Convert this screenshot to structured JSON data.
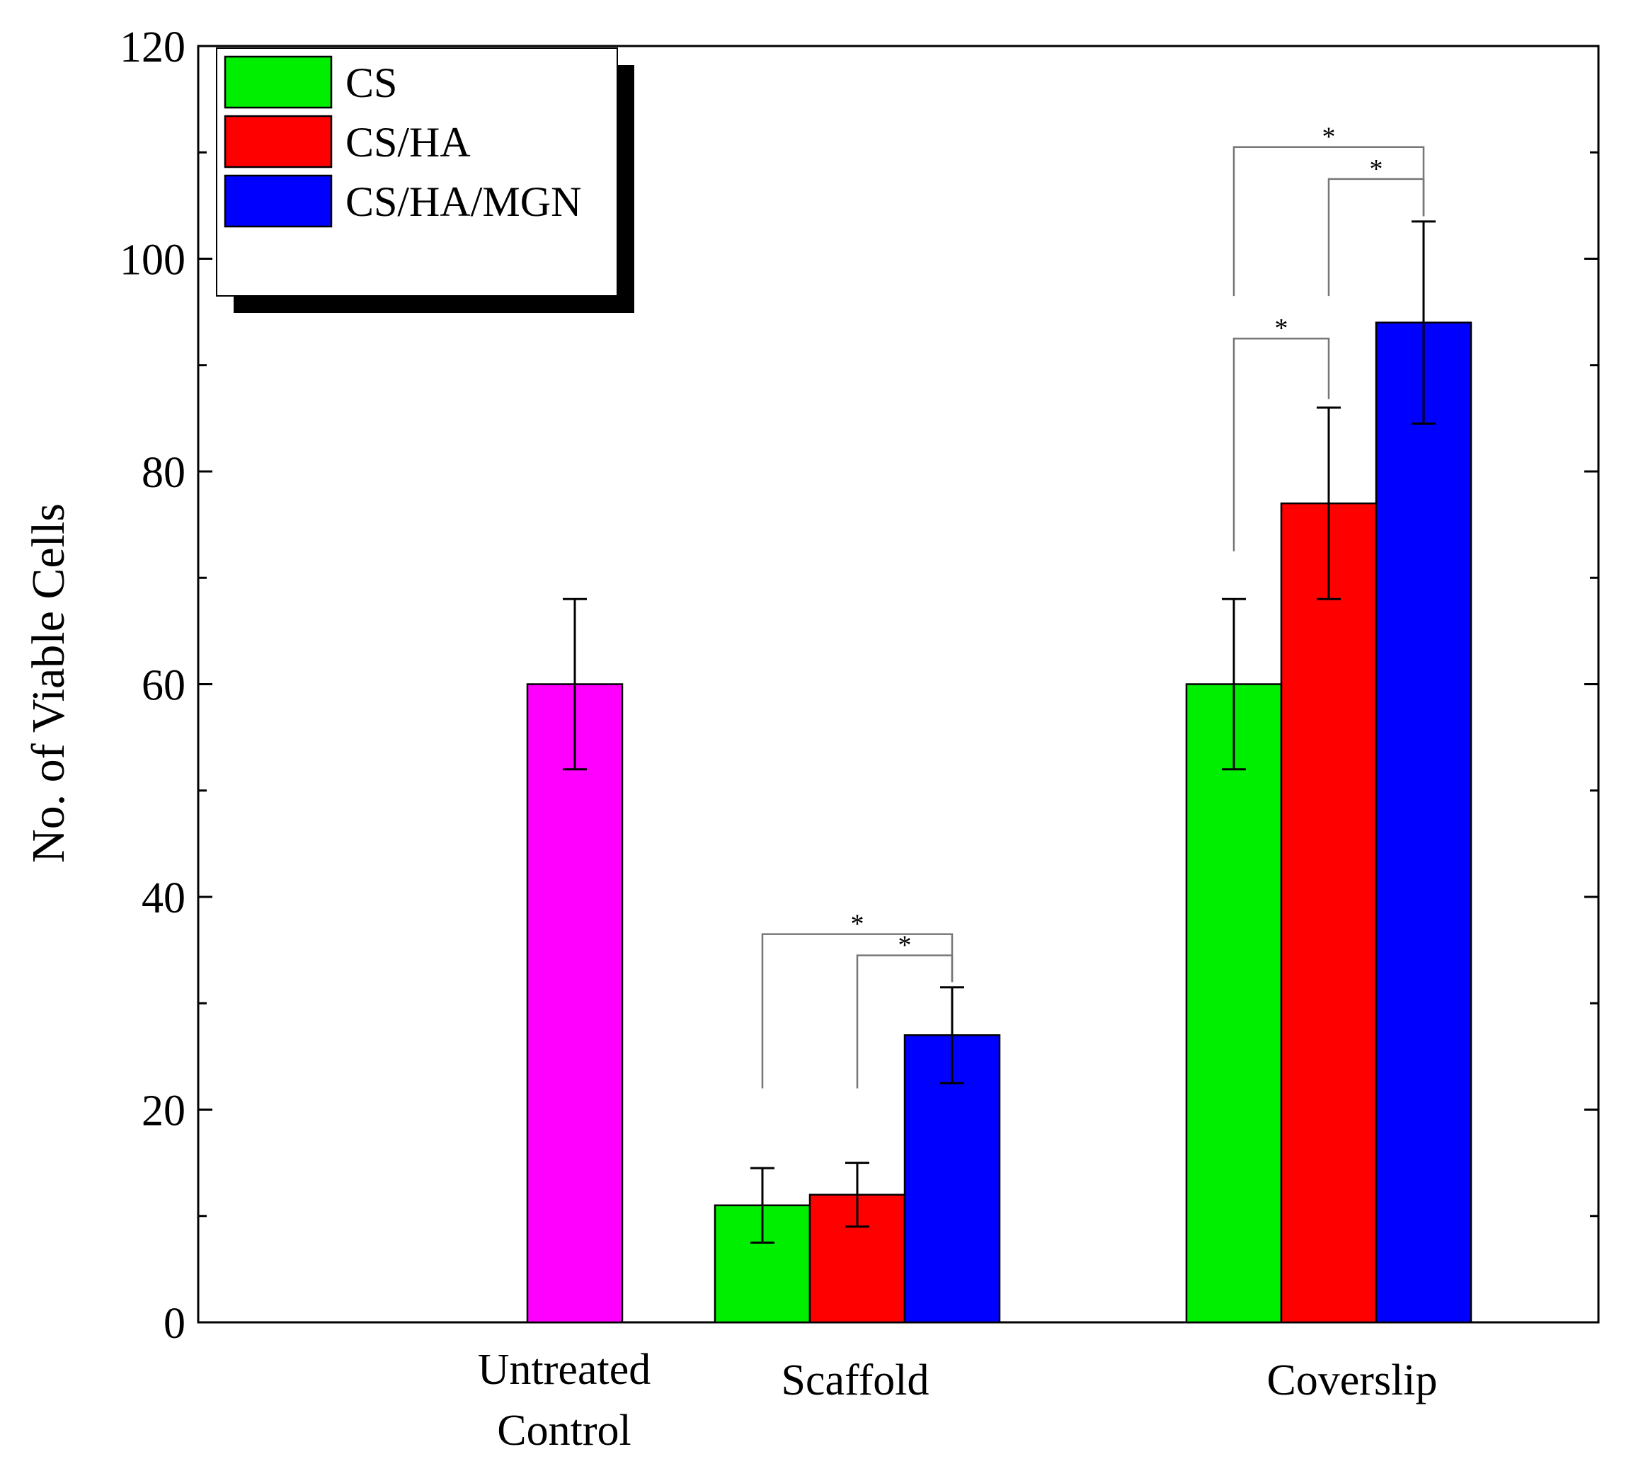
{
  "chart_data": {
    "type": "bar",
    "title": "",
    "xlabel": "",
    "ylabel": "No. of Viable Cells",
    "ylim": [
      0,
      120
    ],
    "yticks": [
      0,
      20,
      40,
      60,
      80,
      100,
      120
    ],
    "legend_position": "top-left",
    "legend": [
      {
        "name": "CS",
        "color": "#00ee00"
      },
      {
        "name": "CS/HA",
        "color": "#ff0000"
      },
      {
        "name": "CS/HA/MGN",
        "color": "#0000ff"
      }
    ],
    "groups": [
      {
        "label_lines": [
          "Untreated",
          "Control"
        ],
        "bars": [
          {
            "name": "Untreated Control",
            "value": 60,
            "error": 8,
            "color": "#ff00ff"
          }
        ]
      },
      {
        "label_lines": [
          "Scaffold"
        ],
        "bars": [
          {
            "name": "CS",
            "value": 11,
            "error": 3.5,
            "color": "#00ee00"
          },
          {
            "name": "CS/HA",
            "value": 12,
            "error": 3,
            "color": "#ff0000"
          },
          {
            "name": "CS/HA/MGN",
            "value": 27,
            "error": 4.5,
            "color": "#0000ff"
          }
        ]
      },
      {
        "label_lines": [
          "Coverslip"
        ],
        "bars": [
          {
            "name": "CS",
            "value": 60,
            "error": 8,
            "color": "#00ee00"
          },
          {
            "name": "CS/HA",
            "value": 77,
            "error": 9,
            "color": "#ff0000"
          },
          {
            "name": "CS/HA/MGN",
            "value": 94,
            "error": 9.5,
            "color": "#0000ff"
          }
        ]
      }
    ],
    "significance": [
      {
        "group": 1,
        "from": 0,
        "to": 2,
        "start_y": 22,
        "bar_y": 36.5,
        "symbol": "*"
      },
      {
        "group": 1,
        "from": 1,
        "to": 2,
        "start_y": 22,
        "bar_y": 34.5,
        "symbol": "*"
      },
      {
        "group": 2,
        "from": 0,
        "to": 1,
        "start_y": 72.5,
        "bar_y": 92.5,
        "symbol": "*"
      },
      {
        "group": 2,
        "from": 0,
        "to": 2,
        "start_y": 96.5,
        "bar_y": 110.5,
        "symbol": "*"
      },
      {
        "group": 2,
        "from": 1,
        "to": 2,
        "start_y": 96.5,
        "bar_y": 107.5,
        "symbol": "*"
      }
    ]
  }
}
